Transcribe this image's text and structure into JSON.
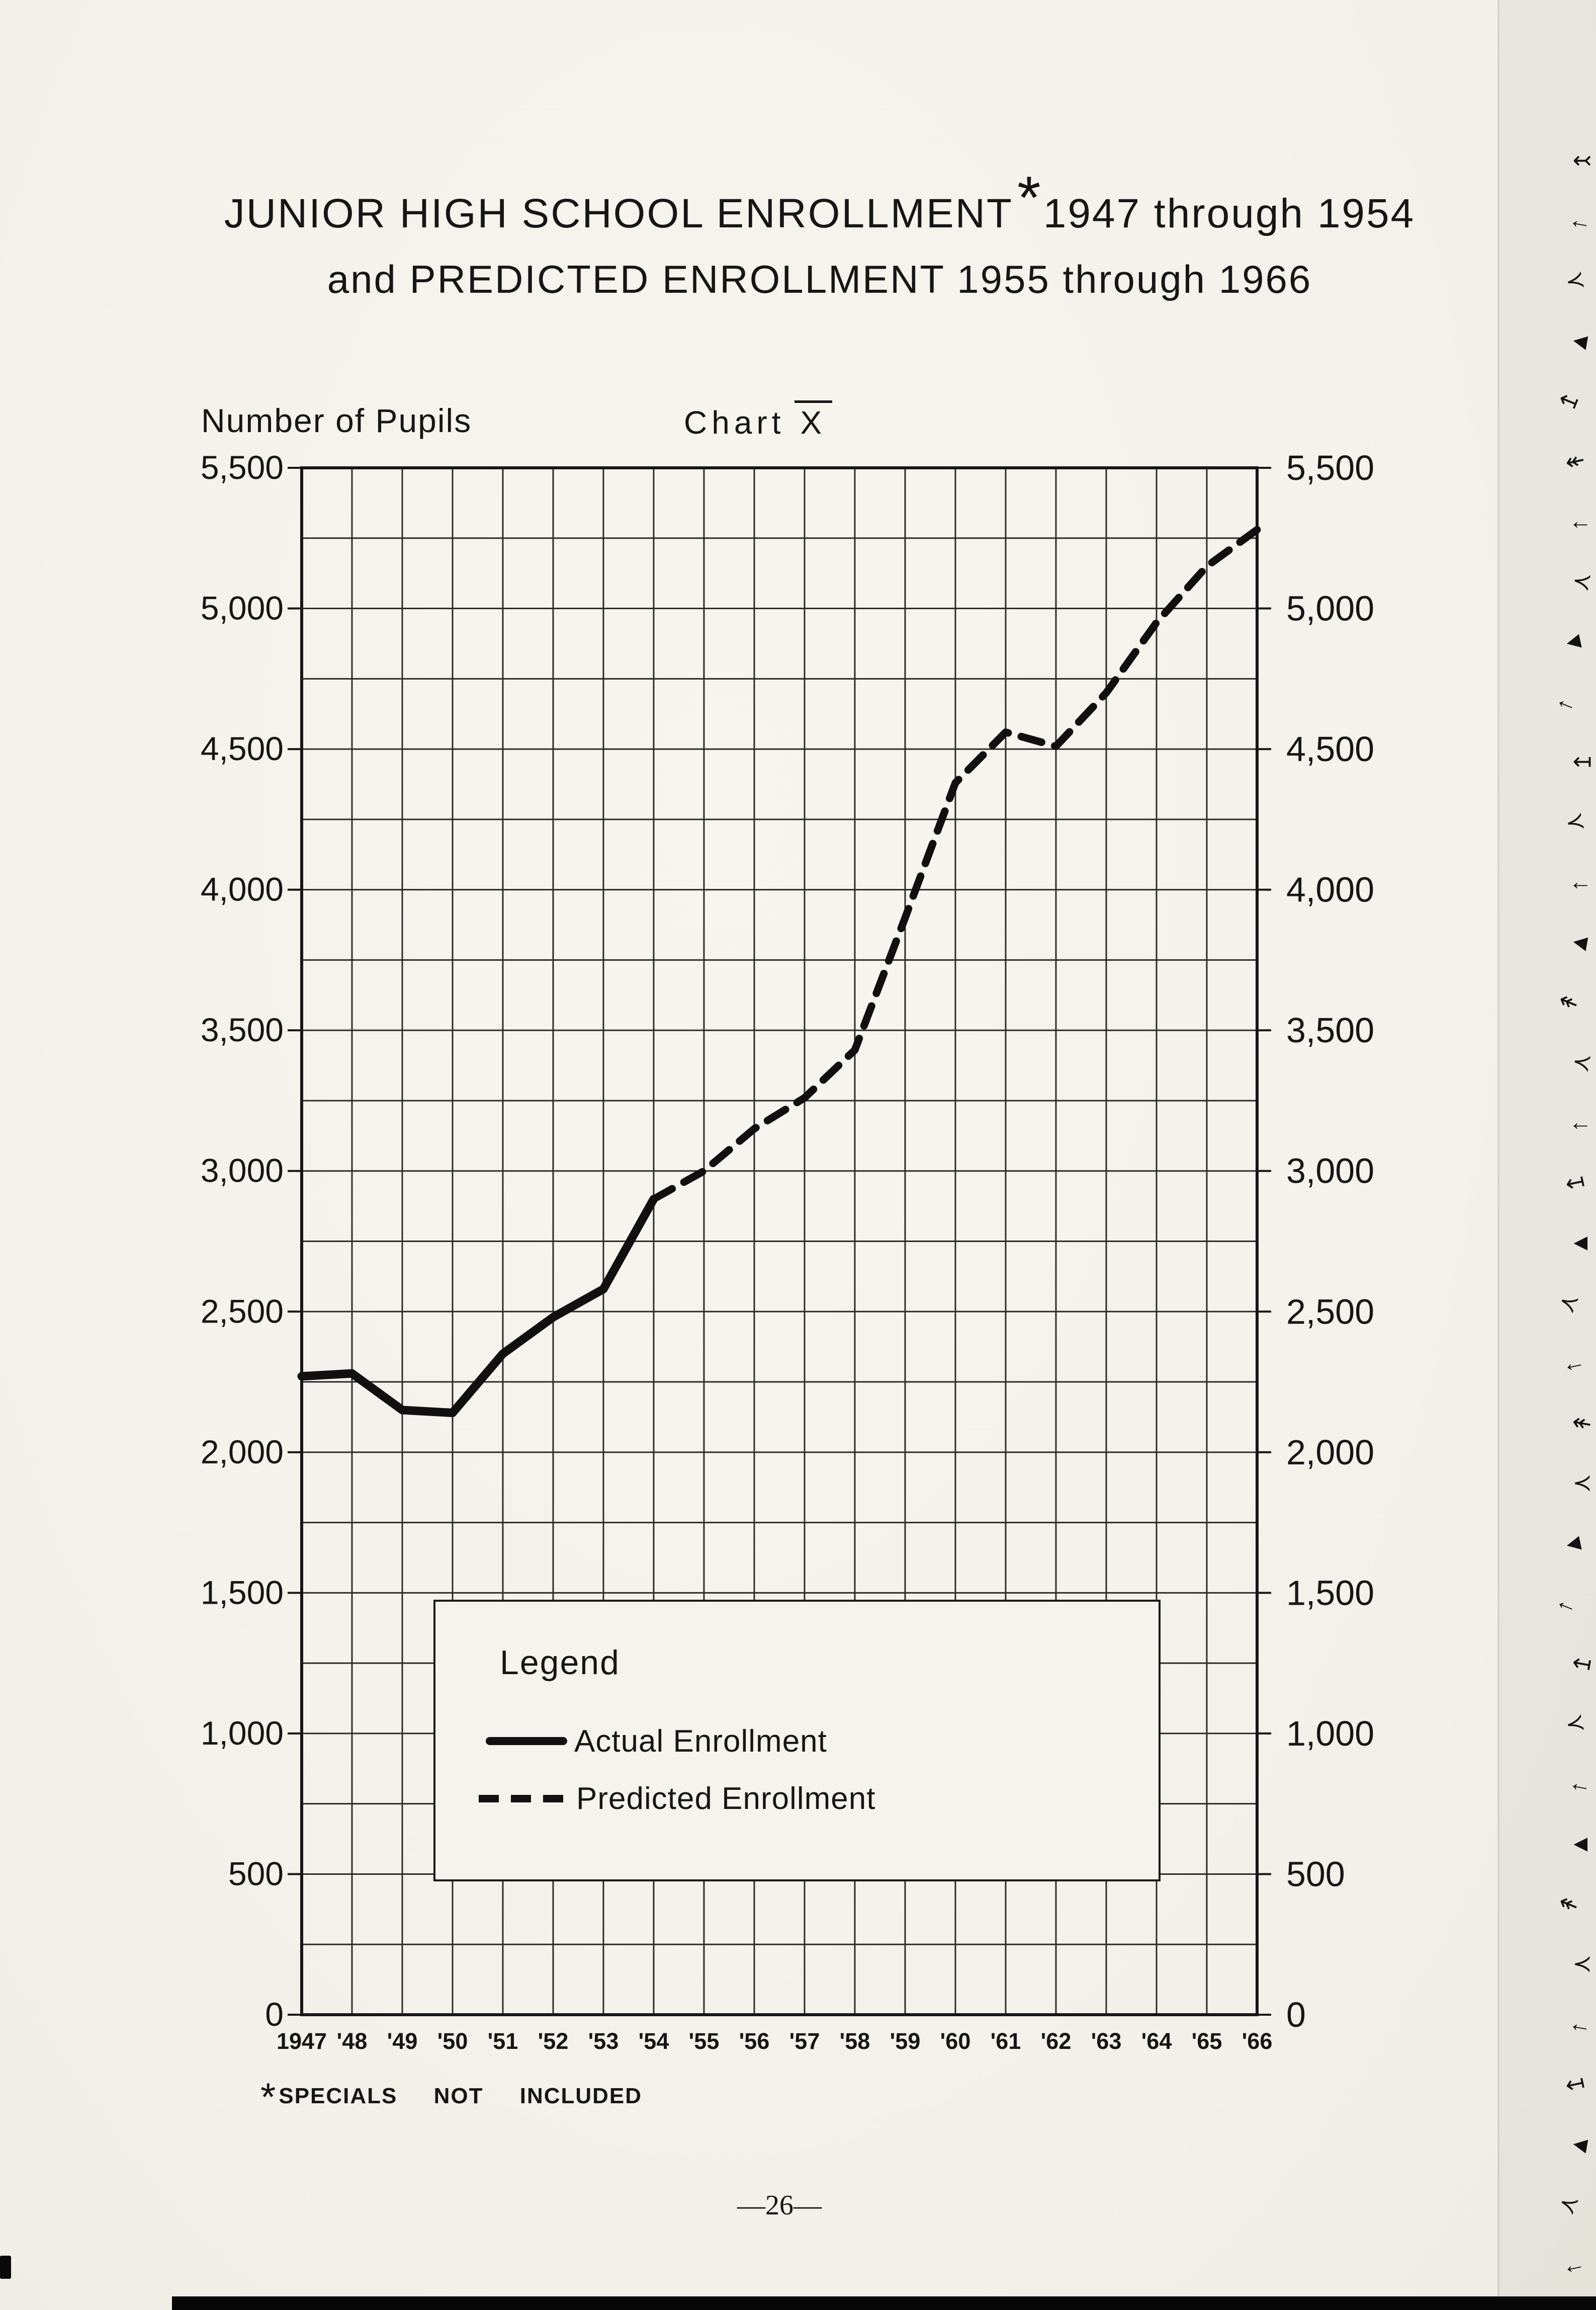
{
  "page": {
    "title_line1_prefix": "JUNIOR HIGH SCHOOL ENROLLMENT",
    "title_asterisk": "*",
    "title_line1_suffix": "1947 through 1954",
    "title_line2": "and PREDICTED ENROLLMENT 1955 through 1966",
    "footnote_asterisk": "*",
    "footnote": "SPECIALS NOT INCLUDED",
    "page_number": "—26—"
  },
  "chart_data": {
    "type": "line",
    "caption": "Chart",
    "caption_numeral": "X",
    "y_axis_title": "Number of Pupils",
    "ylim": [
      0,
      5500
    ],
    "y_major_interval": 500,
    "y_minor_interval": 250,
    "grid": true,
    "ink_color": "#161616",
    "categories": [
      "1947",
      "'48",
      "'49",
      "'50",
      "'51",
      "'52",
      "'53",
      "'54",
      "'55",
      "'56",
      "'57",
      "'58",
      "'59",
      "'60",
      "'61",
      "'62",
      "'63",
      "'64",
      "'65",
      "'66"
    ],
    "y_ticks": [
      {
        "value": 5500,
        "label": "5,500"
      },
      {
        "value": 5000,
        "label": "5,000"
      },
      {
        "value": 4500,
        "label": "4,500"
      },
      {
        "value": 4000,
        "label": "4,000"
      },
      {
        "value": 3500,
        "label": "3,500"
      },
      {
        "value": 3000,
        "label": "3,000"
      },
      {
        "value": 2500,
        "label": "2,500"
      },
      {
        "value": 2000,
        "label": "2,000"
      },
      {
        "value": 1500,
        "label": "1,500"
      },
      {
        "value": 1000,
        "label": "1,000"
      },
      {
        "value": 500,
        "label": "500"
      },
      {
        "value": 0,
        "label": "0"
      }
    ],
    "series": [
      {
        "name": "Actual Enrollment",
        "style": "solid",
        "start_index": 0,
        "years": [
          1947,
          1948,
          1949,
          1950,
          1951,
          1952,
          1953,
          1954
        ],
        "values": [
          2270,
          2280,
          2150,
          2140,
          2350,
          2480,
          2580,
          2900
        ]
      },
      {
        "name": "Predicted Enrollment",
        "style": "dashed",
        "start_index": 7,
        "years": [
          1954,
          1955,
          1956,
          1957,
          1958,
          1959,
          1960,
          1961,
          1962,
          1963,
          1964,
          1965,
          1966
        ],
        "values": [
          2900,
          3000,
          3150,
          3260,
          3430,
          3900,
          4380,
          4560,
          4510,
          4700,
          4950,
          5150,
          5280
        ]
      }
    ],
    "legend": {
      "title": "Legend",
      "position": "inside-bottom-left",
      "items": [
        {
          "label": "Actual Enrollment",
          "style": "solid"
        },
        {
          "label": "Predicted Enrollment",
          "style": "dashed"
        }
      ]
    }
  },
  "artifacts": {
    "margin_marks": [
      "↢",
      "←",
      "≺",
      "◄",
      "↤",
      "↞",
      "←",
      "≺",
      "◄",
      "←",
      "↤",
      "≺",
      "←",
      "◄",
      "↞",
      "≺",
      "←",
      "↤",
      "◄",
      "≺",
      "←",
      "↞",
      "≺",
      "◄",
      "←",
      "↤",
      "≺",
      "←",
      "◄",
      "↞",
      "≺",
      "←",
      "↤",
      "◄",
      "≺",
      "←"
    ]
  }
}
